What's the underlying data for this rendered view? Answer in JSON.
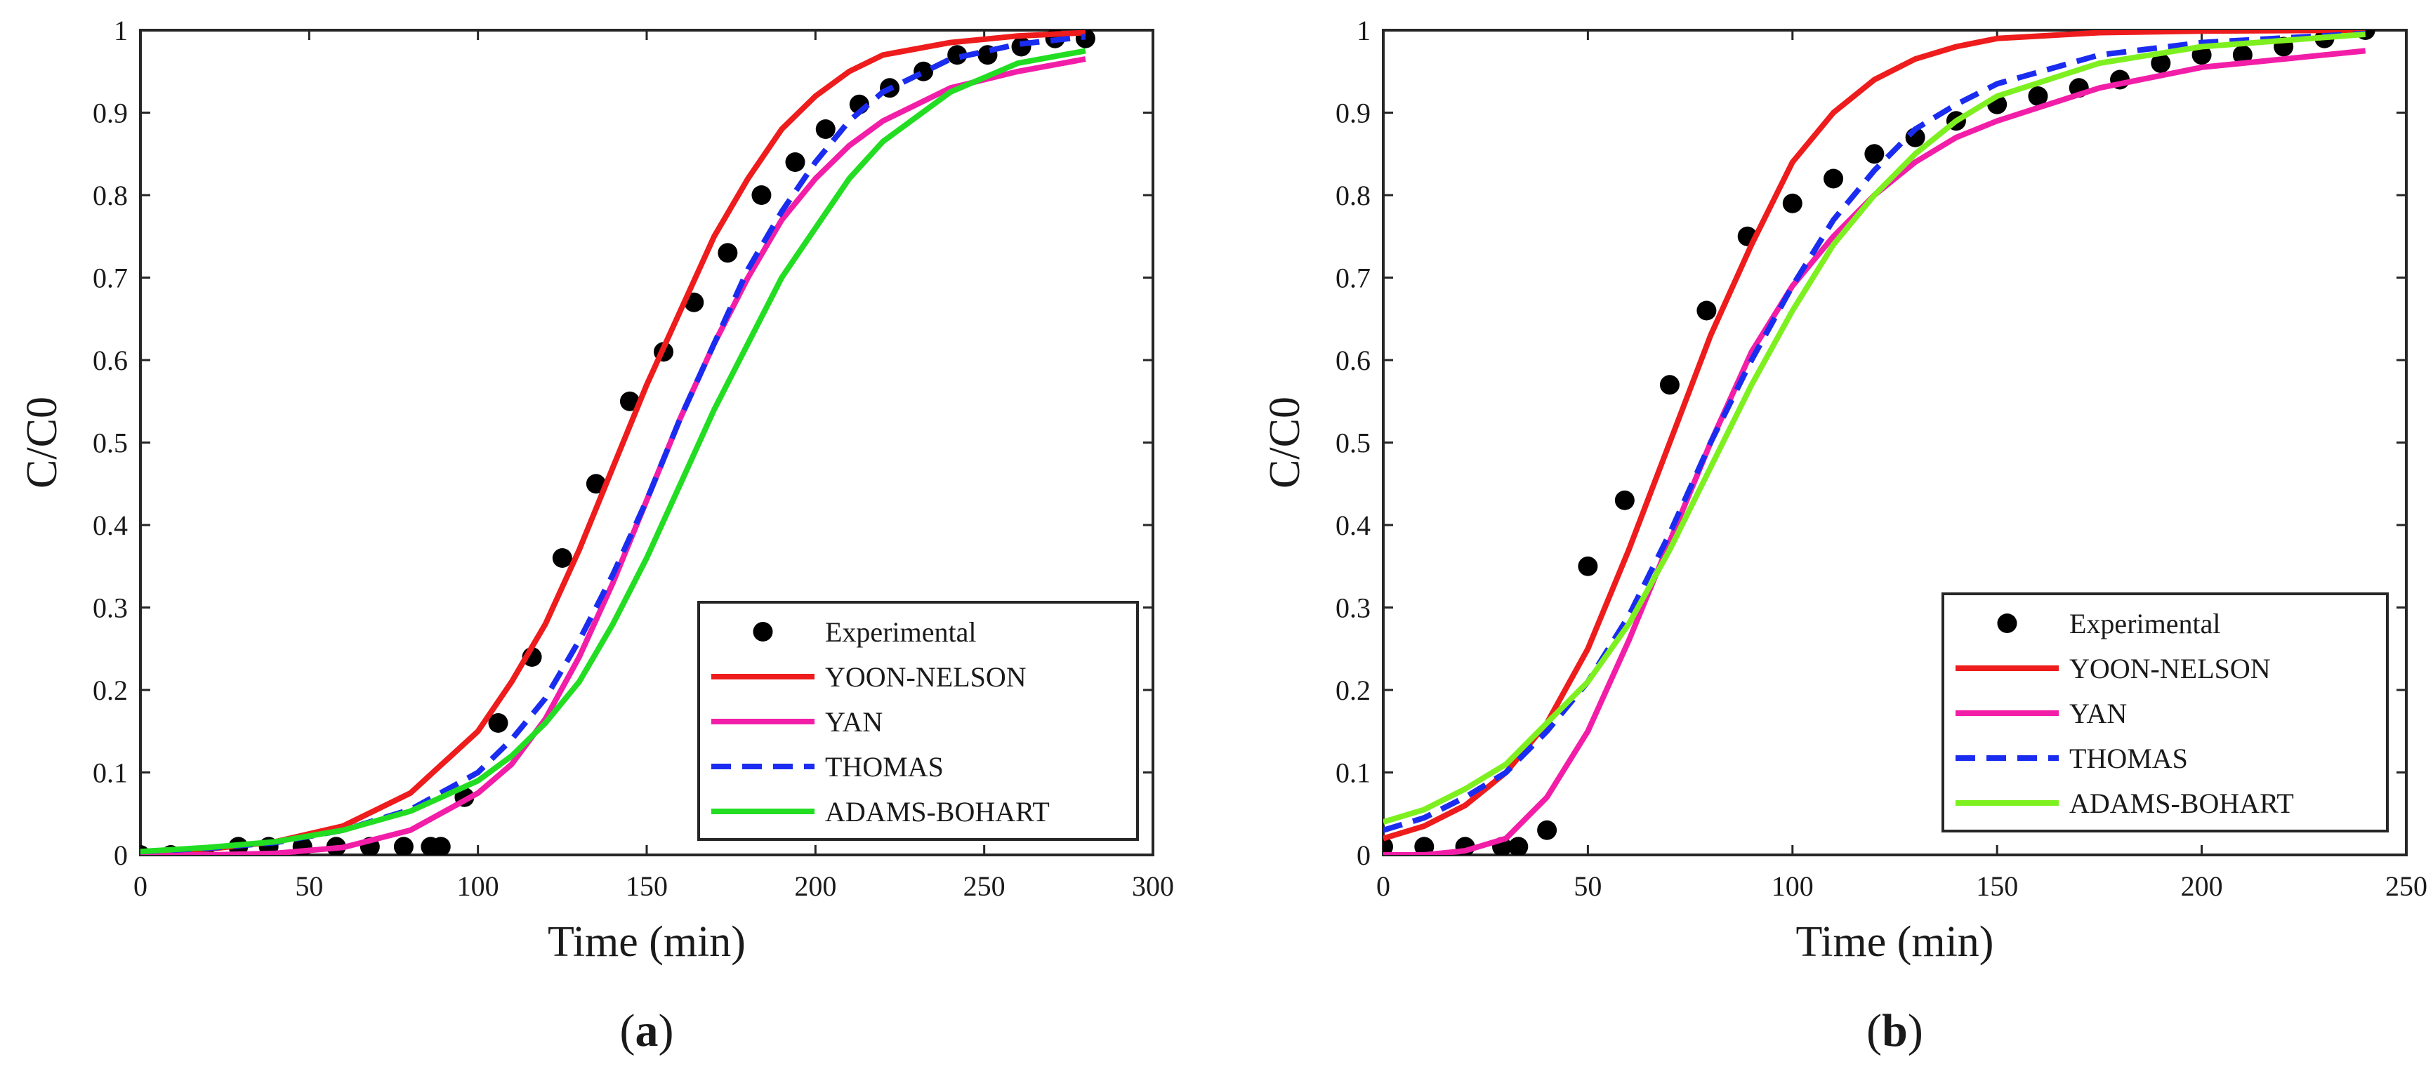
{
  "chart_data": [
    {
      "type": "line",
      "panel_label": {
        "open": "(",
        "letter": "a",
        "close": ")"
      },
      "xlabel": "Time (min)",
      "ylabel": "C/C0",
      "xlim": [
        0,
        300
      ],
      "ylim": [
        0,
        1
      ],
      "xticks": [
        "0",
        "50",
        "100",
        "150",
        "200",
        "250",
        "300"
      ],
      "yticks": [
        "0",
        "0.1",
        "0.2",
        "0.3",
        "0.4",
        "0.5",
        "0.6",
        "0.7",
        "0.8",
        "0.9",
        "1"
      ],
      "grid": false,
      "legend_position": "bottom-right",
      "series": [
        {
          "name": "Experimental",
          "style": "markers",
          "color": "#000000",
          "points": [
            [
              0,
              0
            ],
            [
              9,
              0
            ],
            [
              19,
              0
            ],
            [
              29,
              0.01
            ],
            [
              38,
              0.01
            ],
            [
              48,
              0.01
            ],
            [
              58,
              0.01
            ],
            [
              68,
              0.01
            ],
            [
              78,
              0.01
            ],
            [
              86,
              0.01
            ],
            [
              89,
              0.01
            ],
            [
              96,
              0.07
            ],
            [
              106,
              0.16
            ],
            [
              116,
              0.24
            ],
            [
              125,
              0.36
            ],
            [
              135,
              0.45
            ],
            [
              145,
              0.55
            ],
            [
              155,
              0.61
            ],
            [
              164,
              0.67
            ],
            [
              174,
              0.73
            ],
            [
              184,
              0.8
            ],
            [
              194,
              0.84
            ],
            [
              203,
              0.88
            ],
            [
              213,
              0.91
            ],
            [
              222,
              0.93
            ],
            [
              232,
              0.95
            ],
            [
              242,
              0.97
            ],
            [
              251,
              0.97
            ],
            [
              261,
              0.98
            ],
            [
              271,
              0.99
            ],
            [
              280,
              0.99
            ]
          ]
        },
        {
          "name": "YOON-NELSON",
          "style": "solid",
          "color": "#ee1c1c",
          "points": [
            [
              0,
              0.003
            ],
            [
              20,
              0.007
            ],
            [
              40,
              0.016
            ],
            [
              60,
              0.035
            ],
            [
              80,
              0.075
            ],
            [
              100,
              0.15
            ],
            [
              110,
              0.21
            ],
            [
              120,
              0.28
            ],
            [
              130,
              0.37
            ],
            [
              140,
              0.47
            ],
            [
              150,
              0.57
            ],
            [
              160,
              0.66
            ],
            [
              170,
              0.75
            ],
            [
              180,
              0.82
            ],
            [
              190,
              0.88
            ],
            [
              200,
              0.92
            ],
            [
              210,
              0.95
            ],
            [
              220,
              0.97
            ],
            [
              240,
              0.985
            ],
            [
              260,
              0.993
            ],
            [
              280,
              0.997
            ]
          ]
        },
        {
          "name": "YAN",
          "style": "solid",
          "color": "#f21ea8",
          "points": [
            [
              0,
              0
            ],
            [
              20,
              0
            ],
            [
              40,
              0.002
            ],
            [
              60,
              0.009
            ],
            [
              80,
              0.03
            ],
            [
              100,
              0.075
            ],
            [
              110,
              0.11
            ],
            [
              120,
              0.165
            ],
            [
              130,
              0.24
            ],
            [
              140,
              0.33
            ],
            [
              150,
              0.43
            ],
            [
              160,
              0.53
            ],
            [
              170,
              0.62
            ],
            [
              180,
              0.7
            ],
            [
              190,
              0.77
            ],
            [
              200,
              0.82
            ],
            [
              210,
              0.86
            ],
            [
              220,
              0.89
            ],
            [
              240,
              0.93
            ],
            [
              260,
              0.95
            ],
            [
              280,
              0.965
            ]
          ]
        },
        {
          "name": "THOMAS",
          "style": "dashed",
          "color": "#1a2cf0",
          "points": [
            [
              0,
              0.004
            ],
            [
              20,
              0.008
            ],
            [
              40,
              0.015
            ],
            [
              60,
              0.03
            ],
            [
              80,
              0.055
            ],
            [
              100,
              0.1
            ],
            [
              110,
              0.14
            ],
            [
              120,
              0.19
            ],
            [
              130,
              0.26
            ],
            [
              140,
              0.34
            ],
            [
              150,
              0.43
            ],
            [
              160,
              0.53
            ],
            [
              170,
              0.62
            ],
            [
              180,
              0.71
            ],
            [
              190,
              0.78
            ],
            [
              200,
              0.84
            ],
            [
              210,
              0.89
            ],
            [
              220,
              0.925
            ],
            [
              240,
              0.965
            ],
            [
              260,
              0.983
            ],
            [
              280,
              0.992
            ]
          ]
        },
        {
          "name": "ADAMS-BOHART",
          "style": "solid",
          "color": "#22dd22",
          "points": [
            [
              0,
              0.004
            ],
            [
              20,
              0.009
            ],
            [
              40,
              0.016
            ],
            [
              60,
              0.03
            ],
            [
              80,
              0.053
            ],
            [
              100,
              0.09
            ],
            [
              110,
              0.12
            ],
            [
              120,
              0.16
            ],
            [
              130,
              0.21
            ],
            [
              140,
              0.28
            ],
            [
              150,
              0.36
            ],
            [
              160,
              0.45
            ],
            [
              170,
              0.54
            ],
            [
              180,
              0.62
            ],
            [
              190,
              0.7
            ],
            [
              200,
              0.76
            ],
            [
              210,
              0.82
            ],
            [
              220,
              0.865
            ],
            [
              240,
              0.925
            ],
            [
              260,
              0.96
            ],
            [
              280,
              0.975
            ]
          ]
        }
      ]
    },
    {
      "type": "line",
      "panel_label": {
        "open": "(",
        "letter": "b",
        "close": ")"
      },
      "xlabel": "Time (min)",
      "ylabel": "C/C0",
      "xlim": [
        0,
        250
      ],
      "ylim": [
        0,
        1
      ],
      "xticks": [
        "0",
        "50",
        "100",
        "150",
        "200",
        "250"
      ],
      "yticks": [
        "0",
        "0.1",
        "0.2",
        "0.3",
        "0.4",
        "0.5",
        "0.6",
        "0.7",
        "0.8",
        "0.9",
        "1"
      ],
      "grid": false,
      "legend_position": "bottom-right",
      "series": [
        {
          "name": "Experimental",
          "style": "markers",
          "color": "#000000",
          "points": [
            [
              0,
              0.01
            ],
            [
              10,
              0.01
            ],
            [
              20,
              0.01
            ],
            [
              29,
              0.01
            ],
            [
              33,
              0.01
            ],
            [
              40,
              0.03
            ],
            [
              50,
              0.35
            ],
            [
              59,
              0.43
            ],
            [
              70,
              0.57
            ],
            [
              79,
              0.66
            ],
            [
              89,
              0.75
            ],
            [
              100,
              0.79
            ],
            [
              110,
              0.82
            ],
            [
              120,
              0.85
            ],
            [
              130,
              0.87
            ],
            [
              140,
              0.89
            ],
            [
              150,
              0.91
            ],
            [
              160,
              0.92
            ],
            [
              170,
              0.93
            ],
            [
              180,
              0.94
            ],
            [
              190,
              0.96
            ],
            [
              200,
              0.97
            ],
            [
              210,
              0.97
            ],
            [
              220,
              0.98
            ],
            [
              230,
              0.99
            ],
            [
              240,
              1
            ]
          ]
        },
        {
          "name": "YOON-NELSON",
          "style": "solid",
          "color": "#ee1c1c",
          "points": [
            [
              0,
              0.02
            ],
            [
              10,
              0.035
            ],
            [
              20,
              0.06
            ],
            [
              30,
              0.1
            ],
            [
              40,
              0.16
            ],
            [
              50,
              0.25
            ],
            [
              60,
              0.37
            ],
            [
              70,
              0.5
            ],
            [
              80,
              0.63
            ],
            [
              90,
              0.74
            ],
            [
              100,
              0.84
            ],
            [
              110,
              0.9
            ],
            [
              120,
              0.94
            ],
            [
              130,
              0.965
            ],
            [
              140,
              0.98
            ],
            [
              150,
              0.99
            ],
            [
              175,
              0.997
            ],
            [
              200,
              0.999
            ],
            [
              240,
              1
            ]
          ]
        },
        {
          "name": "YAN",
          "style": "solid",
          "color": "#f21ea8",
          "points": [
            [
              0,
              0
            ],
            [
              10,
              0
            ],
            [
              20,
              0.005
            ],
            [
              30,
              0.02
            ],
            [
              40,
              0.07
            ],
            [
              50,
              0.15
            ],
            [
              60,
              0.26
            ],
            [
              70,
              0.38
            ],
            [
              80,
              0.5
            ],
            [
              90,
              0.61
            ],
            [
              100,
              0.69
            ],
            [
              110,
              0.75
            ],
            [
              120,
              0.8
            ],
            [
              130,
              0.84
            ],
            [
              140,
              0.87
            ],
            [
              150,
              0.89
            ],
            [
              175,
              0.93
            ],
            [
              200,
              0.955
            ],
            [
              240,
              0.975
            ]
          ]
        },
        {
          "name": "THOMAS",
          "style": "dashed",
          "color": "#1a2cf0",
          "points": [
            [
              0,
              0.03
            ],
            [
              10,
              0.045
            ],
            [
              20,
              0.07
            ],
            [
              30,
              0.1
            ],
            [
              40,
              0.15
            ],
            [
              50,
              0.21
            ],
            [
              60,
              0.29
            ],
            [
              70,
              0.39
            ],
            [
              80,
              0.5
            ],
            [
              90,
              0.6
            ],
            [
              100,
              0.69
            ],
            [
              110,
              0.77
            ],
            [
              120,
              0.83
            ],
            [
              130,
              0.88
            ],
            [
              140,
              0.91
            ],
            [
              150,
              0.935
            ],
            [
              175,
              0.97
            ],
            [
              200,
              0.985
            ],
            [
              240,
              0.996
            ]
          ]
        },
        {
          "name": "ADAMS-BOHART",
          "style": "solid",
          "color": "#7ef020",
          "points": [
            [
              0,
              0.04
            ],
            [
              10,
              0.055
            ],
            [
              20,
              0.08
            ],
            [
              30,
              0.11
            ],
            [
              40,
              0.16
            ],
            [
              50,
              0.21
            ],
            [
              60,
              0.28
            ],
            [
              70,
              0.37
            ],
            [
              80,
              0.47
            ],
            [
              90,
              0.57
            ],
            [
              100,
              0.66
            ],
            [
              110,
              0.74
            ],
            [
              120,
              0.8
            ],
            [
              130,
              0.85
            ],
            [
              140,
              0.89
            ],
            [
              150,
              0.92
            ],
            [
              175,
              0.96
            ],
            [
              200,
              0.98
            ],
            [
              240,
              0.995
            ]
          ]
        }
      ]
    }
  ]
}
